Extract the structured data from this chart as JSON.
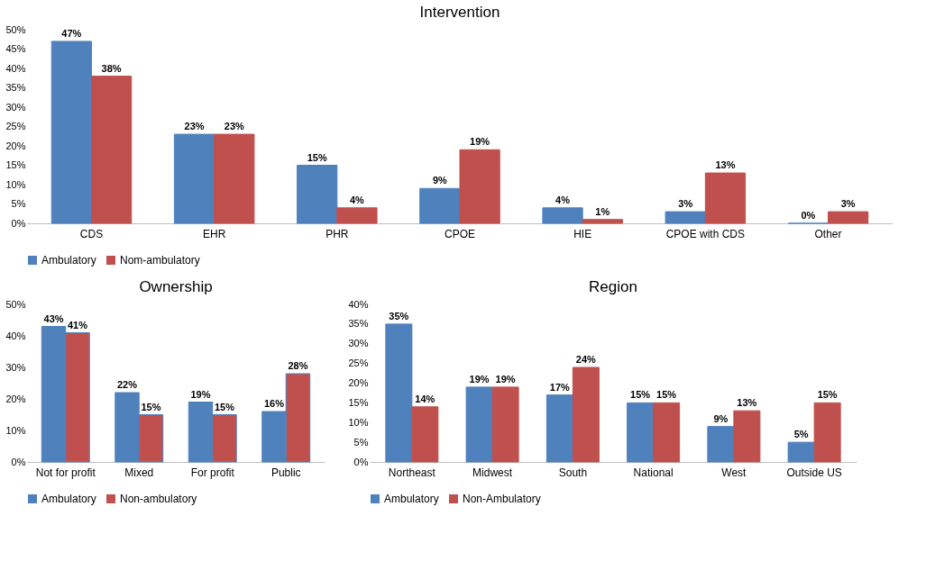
{
  "chart_data": [
    {
      "type": "bar",
      "title": "Intervention",
      "categories": [
        "CDS",
        "EHR",
        "PHR",
        "CPOE",
        "HIE",
        "CPOE with CDS",
        "Other"
      ],
      "series": [
        {
          "name": "Ambulatory",
          "color": "#4f81bd",
          "values": [
            47,
            23,
            15,
            9,
            4,
            3,
            0
          ],
          "value_labels": [
            "47%",
            "23%",
            "15%",
            "9%",
            "4%",
            "3%",
            "0%"
          ]
        },
        {
          "name": "Nom-ambulatory",
          "color": "#c0504d",
          "values": [
            38,
            23,
            4,
            19,
            1,
            13,
            3
          ],
          "value_labels": [
            "38%",
            "23%",
            "4%",
            "19%",
            "1%",
            "13%",
            "3%"
          ]
        }
      ],
      "ylim": [
        0,
        50
      ],
      "yticks": [
        {
          "value": 0,
          "label": "0%"
        },
        {
          "value": 5,
          "label": "5%"
        },
        {
          "value": 10,
          "label": "10%"
        },
        {
          "value": 15,
          "label": "15%"
        },
        {
          "value": 20,
          "label": "20%"
        },
        {
          "value": 25,
          "label": "25%"
        },
        {
          "value": 30,
          "label": "30%"
        },
        {
          "value": 35,
          "label": "35%"
        },
        {
          "value": 40,
          "label": "40%"
        },
        {
          "value": 45,
          "label": "45%"
        },
        {
          "value": 50,
          "label": "50%"
        }
      ],
      "legend": "bottom"
    },
    {
      "type": "bar",
      "title": "Ownership",
      "categories": [
        "Not for profit",
        "Mixed",
        "For profit",
        "Public"
      ],
      "series": [
        {
          "name": "Ambulatory",
          "color": "#4f81bd",
          "values": [
            43,
            22,
            19,
            16
          ],
          "value_labels": [
            "43%",
            "22%",
            "19%",
            "16%"
          ]
        },
        {
          "name": "Non-ambulatory",
          "color": "#c0504d",
          "values": [
            41,
            15,
            15,
            28
          ],
          "value_labels": [
            "41%",
            "15%",
            "15%",
            "28%"
          ]
        }
      ],
      "ylim": [
        0,
        50
      ],
      "yticks": [
        {
          "value": 0,
          "label": "0%"
        },
        {
          "value": 10,
          "label": "10%"
        },
        {
          "value": 20,
          "label": "20%"
        },
        {
          "value": 30,
          "label": "30%"
        },
        {
          "value": 40,
          "label": "40%"
        },
        {
          "value": 50,
          "label": "50%"
        }
      ],
      "legend": "bottom"
    },
    {
      "type": "bar",
      "title": "Region",
      "categories": [
        "Northeast",
        "Midwest",
        "South",
        "National",
        "West",
        "Outside US"
      ],
      "series": [
        {
          "name": "Ambulatory",
          "color": "#4f81bd",
          "values": [
            35,
            19,
            17,
            15,
            9,
            5
          ],
          "value_labels": [
            "35%",
            "19%",
            "17%",
            "15%",
            "9%",
            "5%"
          ]
        },
        {
          "name": "Non-Ambulatory",
          "color": "#c0504d",
          "values": [
            14,
            19,
            24,
            15,
            13,
            15
          ],
          "value_labels": [
            "14%",
            "19%",
            "24%",
            "15%",
            "13%",
            "15%"
          ]
        }
      ],
      "ylim": [
        0,
        40
      ],
      "yticks": [
        {
          "value": 0,
          "label": "0%"
        },
        {
          "value": 5,
          "label": "5%"
        },
        {
          "value": 10,
          "label": "10%"
        },
        {
          "value": 15,
          "label": "15%"
        },
        {
          "value": 20,
          "label": "20%"
        },
        {
          "value": 25,
          "label": "25%"
        },
        {
          "value": 30,
          "label": "30%"
        },
        {
          "value": 35,
          "label": "35%"
        },
        {
          "value": 40,
          "label": "40%"
        }
      ],
      "legend": "bottom"
    }
  ]
}
